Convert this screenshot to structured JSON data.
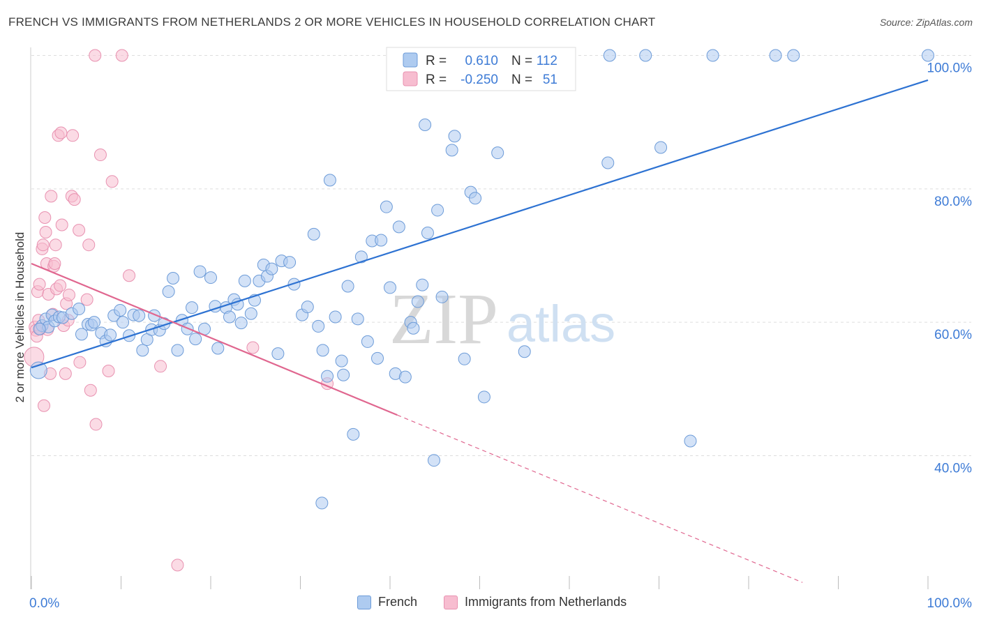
{
  "title": "FRENCH VS IMMIGRANTS FROM NETHERLANDS 2 OR MORE VEHICLES IN HOUSEHOLD CORRELATION CHART",
  "source": "Source: ZipAtlas.com",
  "watermark": {
    "zip": "ZIP",
    "atlas": "atlas"
  },
  "colors": {
    "french_fill": "#aecbf0",
    "french_stroke": "#6c9bd8",
    "french_line": "#2d72d2",
    "neth_fill": "#f7bdd0",
    "neth_stroke": "#e891b0",
    "neth_line": "#e0668f",
    "grid": "#dddddd",
    "axis_text": "#3d7bd6"
  },
  "legend_top": {
    "rows": [
      {
        "r_label": "R =",
        "r_value": "0.610",
        "n_label": "N =",
        "n_value": "112"
      },
      {
        "r_label": "R =",
        "r_value": "-0.250",
        "n_label": "N =",
        "n_value": "51"
      }
    ]
  },
  "legend_bottom": {
    "french": "French",
    "netherlands": "Immigrants from Netherlands"
  },
  "chart_data": {
    "type": "scatter",
    "title": "FRENCH VS IMMIGRANTS FROM NETHERLANDS 2 OR MORE VEHICLES IN HOUSEHOLD CORRELATION CHART",
    "xlabel": "",
    "ylabel": "2 or more Vehicles in Household",
    "xlim": [
      0,
      100
    ],
    "ylim": [
      20,
      102
    ],
    "x_tick_labels": [
      "0.0%",
      "100.0%"
    ],
    "y_tick_labels": [
      "40.0%",
      "60.0%",
      "80.0%",
      "100.0%"
    ],
    "y_ticks": [
      40,
      60,
      80,
      100
    ],
    "grid": true,
    "legend_position": "top-center",
    "series": [
      {
        "name": "French",
        "r": 0.61,
        "n": 112,
        "trend": {
          "x": [
            0,
            100
          ],
          "y": [
            53.2,
            96.3
          ]
        },
        "points": [
          [
            0.8,
            52.8
          ],
          [
            1.2,
            59.5
          ],
          [
            1.6,
            60.5
          ],
          [
            1.9,
            59.3
          ],
          [
            2.3,
            61.1
          ],
          [
            2.6,
            60.2
          ],
          [
            3.1,
            60.8
          ],
          [
            3.5,
            60.7
          ],
          [
            4.5,
            61.3
          ],
          [
            5.3,
            62.0
          ],
          [
            5.6,
            58.2
          ],
          [
            6.3,
            59.7
          ],
          [
            6.7,
            59.6
          ],
          [
            7.0,
            60.0
          ],
          [
            7.8,
            58.4
          ],
          [
            8.3,
            57.2
          ],
          [
            8.8,
            58.1
          ],
          [
            9.2,
            61.0
          ],
          [
            9.9,
            61.8
          ],
          [
            10.2,
            60.0
          ],
          [
            10.9,
            58.0
          ],
          [
            11.4,
            61.1
          ],
          [
            12.0,
            61.0
          ],
          [
            12.4,
            55.8
          ],
          [
            12.9,
            57.4
          ],
          [
            13.4,
            58.9
          ],
          [
            13.7,
            61.0
          ],
          [
            14.3,
            58.8
          ],
          [
            14.8,
            59.8
          ],
          [
            15.3,
            64.6
          ],
          [
            15.8,
            66.6
          ],
          [
            16.3,
            55.8
          ],
          [
            16.8,
            60.3
          ],
          [
            17.4,
            59.0
          ],
          [
            17.9,
            62.2
          ],
          [
            18.3,
            57.5
          ],
          [
            18.8,
            67.6
          ],
          [
            19.3,
            59.0
          ],
          [
            20.0,
            66.7
          ],
          [
            20.5,
            62.4
          ],
          [
            20.8,
            56.1
          ],
          [
            21.7,
            62.2
          ],
          [
            22.1,
            60.8
          ],
          [
            22.6,
            63.4
          ],
          [
            23.0,
            62.7
          ],
          [
            23.4,
            59.9
          ],
          [
            23.8,
            66.2
          ],
          [
            24.5,
            61.3
          ],
          [
            24.9,
            63.3
          ],
          [
            25.4,
            66.2
          ],
          [
            25.9,
            68.6
          ],
          [
            26.3,
            66.9
          ],
          [
            26.8,
            68.0
          ],
          [
            27.5,
            55.3
          ],
          [
            27.9,
            69.2
          ],
          [
            28.8,
            69.0
          ],
          [
            29.3,
            65.7
          ],
          [
            30.2,
            61.1
          ],
          [
            30.8,
            62.3
          ],
          [
            31.5,
            73.2
          ],
          [
            32.0,
            59.4
          ],
          [
            32.5,
            55.8
          ],
          [
            33.0,
            51.9
          ],
          [
            33.3,
            81.3
          ],
          [
            33.9,
            60.8
          ],
          [
            34.6,
            54.2
          ],
          [
            34.8,
            52.1
          ],
          [
            35.3,
            65.4
          ],
          [
            35.9,
            43.2
          ],
          [
            36.4,
            60.5
          ],
          [
            36.8,
            69.8
          ],
          [
            37.5,
            57.1
          ],
          [
            38.0,
            72.2
          ],
          [
            38.6,
            54.6
          ],
          [
            39.0,
            72.3
          ],
          [
            39.6,
            77.3
          ],
          [
            40.0,
            65.2
          ],
          [
            40.6,
            52.3
          ],
          [
            41.0,
            74.3
          ],
          [
            41.7,
            51.8
          ],
          [
            42.3,
            60.0
          ],
          [
            42.6,
            59.1
          ],
          [
            43.1,
            63.1
          ],
          [
            43.6,
            65.6
          ],
          [
            43.9,
            89.6
          ],
          [
            44.2,
            73.4
          ],
          [
            44.9,
            39.3
          ],
          [
            45.3,
            76.8
          ],
          [
            45.8,
            63.8
          ],
          [
            46.9,
            85.8
          ],
          [
            47.2,
            87.9
          ],
          [
            48.3,
            54.5
          ],
          [
            49.0,
            79.5
          ],
          [
            49.5,
            78.6
          ],
          [
            50.5,
            48.8
          ],
          [
            52.0,
            85.4
          ],
          [
            55.0,
            55.6
          ],
          [
            57.3,
            100.0
          ],
          [
            60.0,
            100.0
          ],
          [
            64.3,
            83.9
          ],
          [
            64.5,
            100.0
          ],
          [
            68.5,
            100.0
          ],
          [
            70.2,
            86.2
          ],
          [
            73.5,
            42.2
          ],
          [
            76.0,
            100.0
          ],
          [
            83.0,
            100.0
          ],
          [
            85.0,
            100.0
          ],
          [
            100.0,
            100.0
          ],
          [
            47.0,
            100.0
          ],
          [
            53.5,
            100.0
          ],
          [
            32.4,
            32.9
          ],
          [
            0.9,
            59.0
          ]
        ]
      },
      {
        "name": "Immigrants from Netherlands",
        "r": -0.25,
        "n": 51,
        "trend": {
          "x": [
            0,
            40.8
          ],
          "y": [
            68.8,
            46.1
          ]
        },
        "trend_extrapolated": {
          "x": [
            40.8,
            86.0
          ],
          "y": [
            46.1,
            21.0
          ]
        },
        "points": [
          [
            0.3,
            54.8
          ],
          [
            0.4,
            59.3
          ],
          [
            0.5,
            58.8
          ],
          [
            0.6,
            57.9
          ],
          [
            0.7,
            64.6
          ],
          [
            0.8,
            60.3
          ],
          [
            0.9,
            65.7
          ],
          [
            1.0,
            59.0
          ],
          [
            1.2,
            71.0
          ],
          [
            1.3,
            71.6
          ],
          [
            1.4,
            47.5
          ],
          [
            1.5,
            75.7
          ],
          [
            1.6,
            73.5
          ],
          [
            1.7,
            68.8
          ],
          [
            1.8,
            58.9
          ],
          [
            1.9,
            64.2
          ],
          [
            2.1,
            52.3
          ],
          [
            2.2,
            78.9
          ],
          [
            2.4,
            61.2
          ],
          [
            2.5,
            68.4
          ],
          [
            2.6,
            68.8
          ],
          [
            2.7,
            71.6
          ],
          [
            2.8,
            65.0
          ],
          [
            3.0,
            88.0
          ],
          [
            3.2,
            65.5
          ],
          [
            3.3,
            88.4
          ],
          [
            3.4,
            74.6
          ],
          [
            3.6,
            59.5
          ],
          [
            3.8,
            52.3
          ],
          [
            3.9,
            62.8
          ],
          [
            4.1,
            60.3
          ],
          [
            4.2,
            64.1
          ],
          [
            4.5,
            78.9
          ],
          [
            4.6,
            88.0
          ],
          [
            4.8,
            78.4
          ],
          [
            5.3,
            73.8
          ],
          [
            5.4,
            54.0
          ],
          [
            6.2,
            63.4
          ],
          [
            6.4,
            71.6
          ],
          [
            6.6,
            49.8
          ],
          [
            7.1,
            100.0
          ],
          [
            7.2,
            44.7
          ],
          [
            7.7,
            85.1
          ],
          [
            8.6,
            52.7
          ],
          [
            9.0,
            81.1
          ],
          [
            10.1,
            100.0
          ],
          [
            10.9,
            67.0
          ],
          [
            14.4,
            53.4
          ],
          [
            16.3,
            23.6
          ],
          [
            24.7,
            56.2
          ],
          [
            33.0,
            50.8
          ]
        ]
      }
    ]
  }
}
